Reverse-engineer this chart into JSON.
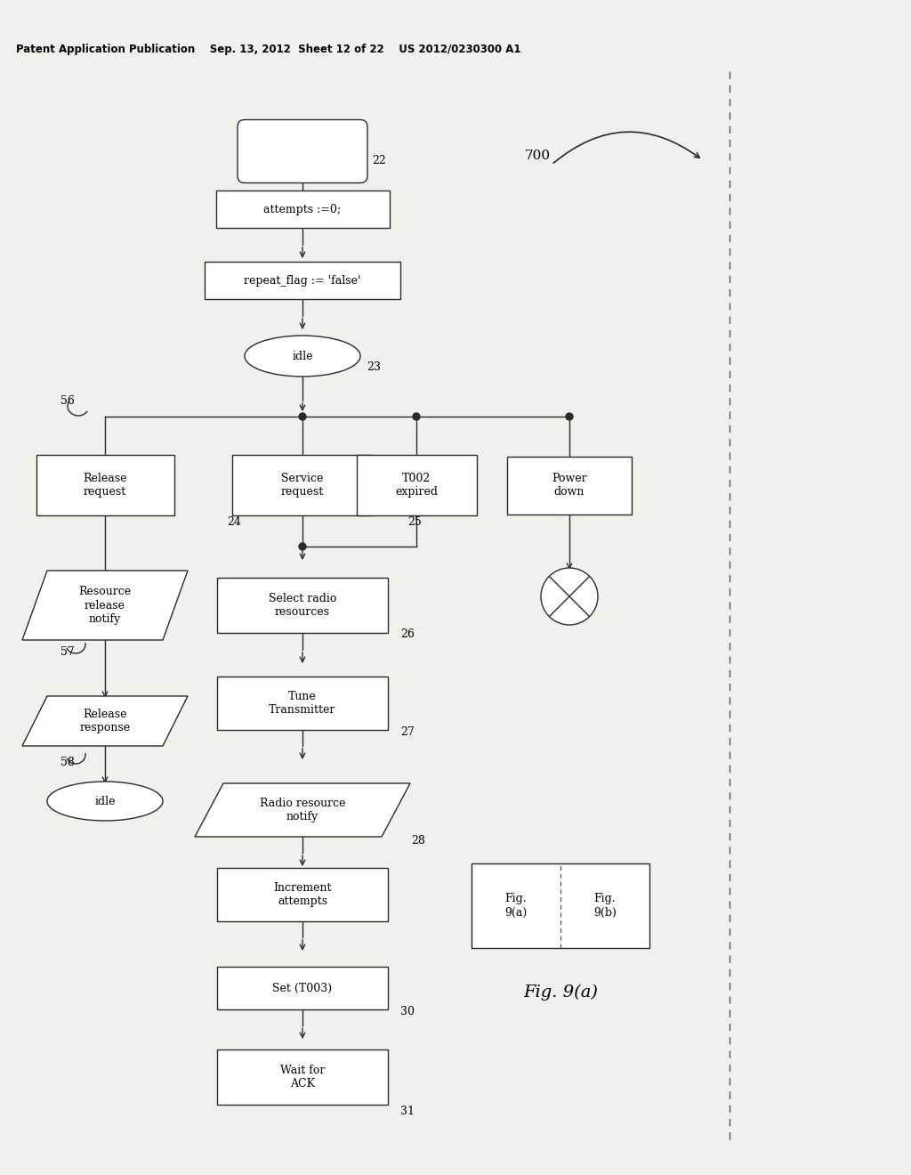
{
  "bg_color": "#f2f0eb",
  "line_color": "#2a2a2a",
  "header": "Patent Application Publication    Sep. 13, 2012  Sheet 12 of 22    US 2012/0230300 A1",
  "node22": "22",
  "node23": "23",
  "node24": "24",
  "node25": "25",
  "node26": "26",
  "node27": "27",
  "node28": "28",
  "node30": "30",
  "node31": "31",
  "node56": "56",
  "node57": "57",
  "node58": "58",
  "node700": "700",
  "box_attempts": "attempts :=0;",
  "box_repeat": "repeat_flag := 'false'",
  "oval_idle1": "idle",
  "oval_idle2": "idle",
  "box_release_req": "Release\nrequest",
  "box_service_req": "Service\nrequest",
  "box_t002": "T002\nexpired",
  "box_power": "Power\ndown",
  "para_res_rel": "Resource\nrelease\nnotify",
  "box_select": "Select radio\nresources",
  "box_tune": "Tune\nTransmitter",
  "para_radio": "Radio resource\nnotify",
  "box_increment": "Increment\nattempts",
  "box_set": "Set (T003)",
  "box_wait": "Wait for\nACK",
  "para_rel_resp": "Release\nresponse",
  "fig_9a_inner": "Fig.\n9(a)",
  "fig_9b_inner": "Fig.\n9(b)",
  "fig_label_text": "Fig. 9(a)"
}
